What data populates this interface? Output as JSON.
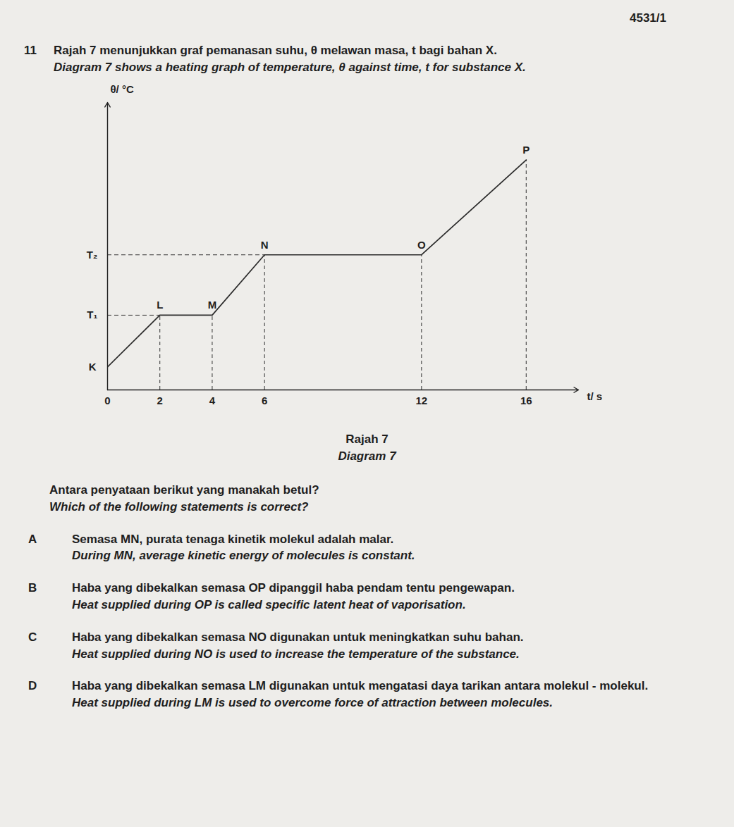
{
  "page_code": "4531/1",
  "question": {
    "number": "11",
    "text_ms": "Rajah 7 menunjukkan graf pemanasan suhu, θ melawan masa, t bagi bahan X.",
    "text_en": "Diagram 7 shows a heating graph of temperature, θ against time, t for substance X."
  },
  "chart_data": {
    "type": "line",
    "x": [
      0,
      2,
      4,
      6,
      12,
      16
    ],
    "values": [
      8,
      26,
      26,
      47,
      47,
      80
    ],
    "point_labels": [
      "K",
      "L",
      "M",
      "N",
      "O",
      "P"
    ],
    "x_label": "t/ s",
    "y_label": "θ/ °C",
    "xlim": [
      0,
      18
    ],
    "ylim": [
      0,
      100
    ],
    "xticks": [
      0,
      2,
      4,
      6,
      12,
      16
    ],
    "yticks": [
      {
        "value": 26,
        "label": "T₁"
      },
      {
        "value": 47,
        "label": "T₂"
      }
    ],
    "color": "#2b2b2b",
    "line_style": "solid"
  },
  "caption": {
    "ms": "Rajah 7",
    "en": "Diagram 7"
  },
  "prompt": {
    "ms": "Antara penyataan berikut yang manakah betul?",
    "en": "Which of the following statements is correct?"
  },
  "options": [
    {
      "letter": "A",
      "ms": "Semasa MN, purata tenaga kinetik molekul adalah malar.",
      "en": "During MN, average kinetic energy of molecules is constant."
    },
    {
      "letter": "B",
      "ms": "Haba yang dibekalkan semasa OP dipanggil haba pendam tentu pengewapan.",
      "en": "Heat supplied during OP is called specific latent heat of vaporisation."
    },
    {
      "letter": "C",
      "ms": "Haba yang dibekalkan semasa NO digunakan untuk meningkatkan suhu bahan.",
      "en": "Heat supplied during NO is used to increase the temperature of the substance."
    },
    {
      "letter": "D",
      "ms": "Haba yang dibekalkan semasa LM digunakan untuk mengatasi daya tarikan antara molekul - molekul.",
      "en": "Heat supplied during LM is used to overcome force of attraction between molecules."
    }
  ]
}
